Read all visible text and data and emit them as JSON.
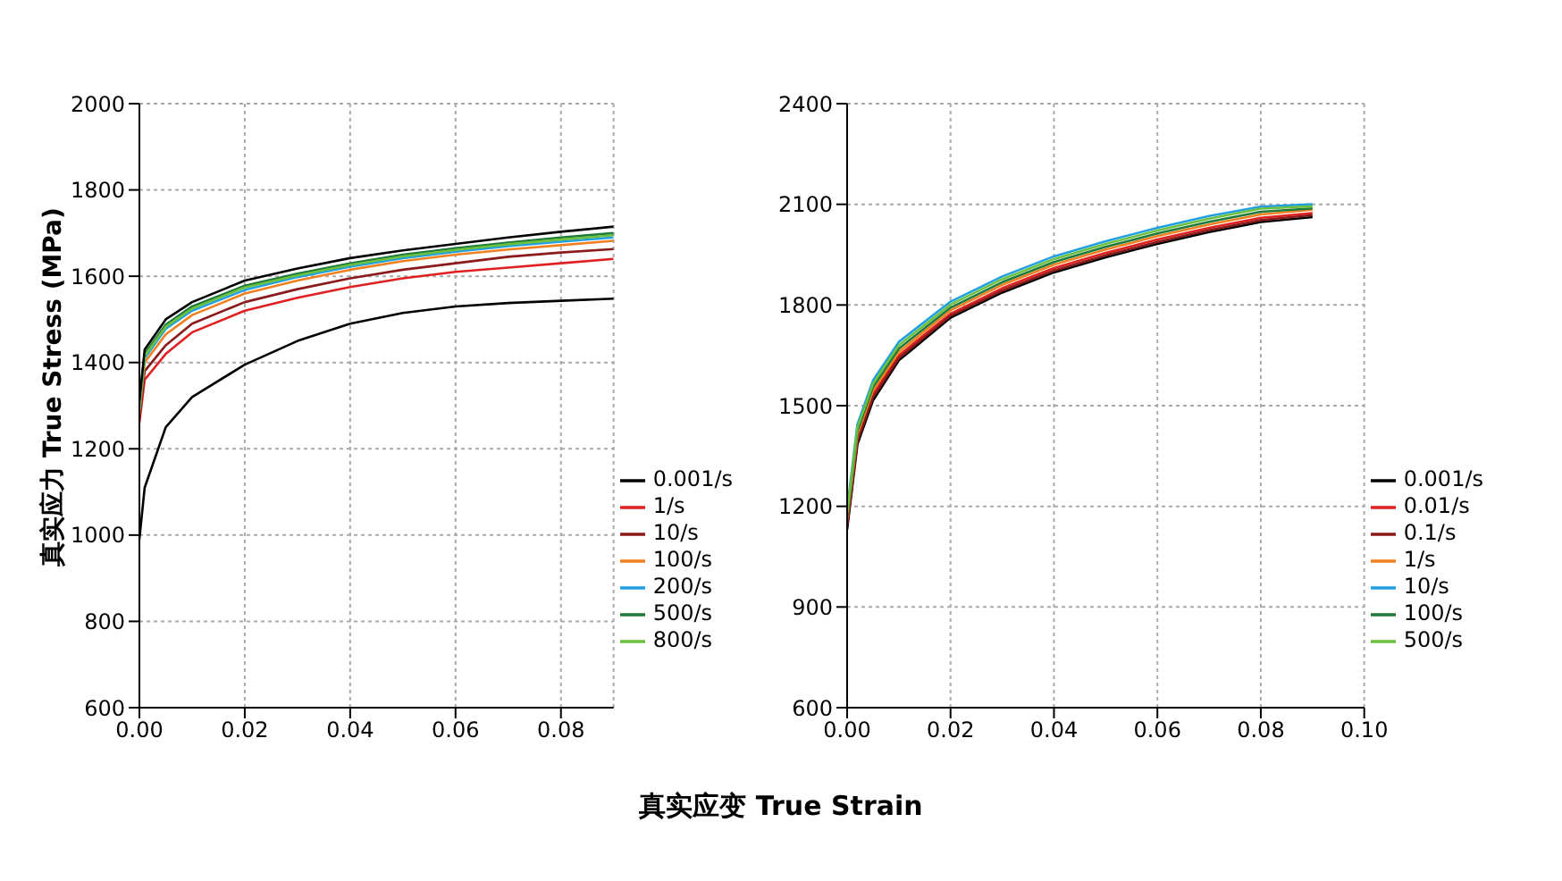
{
  "chart_data": [
    {
      "type": "line",
      "ylabel": "真实应力 True Stress (MPa)",
      "xlabel": "真实应变 True Strain",
      "x": [
        0,
        0.001,
        0.005,
        0.01,
        0.02,
        0.03,
        0.04,
        0.05,
        0.06,
        0.07,
        0.08,
        0.09
      ],
      "xlim": [
        0,
        0.09
      ],
      "xticks": [
        {
          "value": 0,
          "label": "0.00"
        },
        {
          "value": 0.02,
          "label": "0.02"
        },
        {
          "value": 0.04,
          "label": "0.04"
        },
        {
          "value": 0.06,
          "label": "0.06"
        },
        {
          "value": 0.08,
          "label": "0.08"
        }
      ],
      "ylim": [
        600,
        2000
      ],
      "yticks": [
        600,
        800,
        1000,
        1200,
        1400,
        1600,
        1800,
        2000
      ],
      "grid": true,
      "legend": "bottom right",
      "line_style": "solid",
      "marker": "none",
      "series": [
        {
          "name": "0.001/s",
          "color": "#000000",
          "values": [
            990,
            1110,
            1250,
            1320,
            1395,
            1450,
            1490,
            1515,
            1530,
            1538,
            1543,
            1548
          ]
        },
        {
          "name": "1/s",
          "color": "#e02020",
          "values": [
            1260,
            1360,
            1420,
            1470,
            1520,
            1550,
            1575,
            1595,
            1610,
            1620,
            1630,
            1640
          ]
        },
        {
          "name": "10/s",
          "color": "#8b1a1a",
          "values": [
            1270,
            1380,
            1440,
            1490,
            1540,
            1570,
            1595,
            1615,
            1630,
            1645,
            1655,
            1663
          ]
        },
        {
          "name": "100/s",
          "color": "#f08020",
          "values": [
            1280,
            1400,
            1465,
            1510,
            1560,
            1590,
            1615,
            1635,
            1650,
            1662,
            1672,
            1682
          ]
        },
        {
          "name": "200/s",
          "color": "#20a0e0",
          "values": [
            1290,
            1410,
            1478,
            1520,
            1568,
            1598,
            1622,
            1642,
            1657,
            1670,
            1680,
            1690
          ]
        },
        {
          "name": "500/s",
          "color": "#1e7a3a",
          "values": [
            1300,
            1420,
            1488,
            1530,
            1578,
            1606,
            1630,
            1650,
            1665,
            1678,
            1690,
            1700
          ]
        },
        {
          "name": "800/s",
          "color": "#6cc040",
          "values": [
            1295,
            1415,
            1483,
            1525,
            1574,
            1602,
            1626,
            1646,
            1661,
            1674,
            1685,
            1695
          ]
        },
        {
          "color": "#000000",
          "values": [
            1310,
            1430,
            1500,
            1540,
            1590,
            1618,
            1642,
            1660,
            1675,
            1690,
            1703,
            1715
          ]
        }
      ]
    },
    {
      "type": "line",
      "x": [
        0,
        0.002,
        0.005,
        0.01,
        0.02,
        0.03,
        0.04,
        0.05,
        0.06,
        0.07,
        0.08,
        0.09
      ],
      "xlim": [
        0,
        0.1
      ],
      "xticks": [
        {
          "value": 0,
          "label": "0.00"
        },
        {
          "value": 0.02,
          "label": "0.02"
        },
        {
          "value": 0.04,
          "label": "0.04"
        },
        {
          "value": 0.06,
          "label": "0.06"
        },
        {
          "value": 0.08,
          "label": "0.08"
        },
        {
          "value": 0.1,
          "label": "0.10"
        }
      ],
      "ylim": [
        600,
        2400
      ],
      "yticks": [
        600,
        900,
        1200,
        1500,
        1800,
        2100,
        2400
      ],
      "grid": true,
      "legend": "bottom right",
      "line_style": "solid",
      "marker": "none",
      "series": [
        {
          "name": "0.001/s",
          "color": "#000000",
          "values": [
            1130,
            1385,
            1515,
            1635,
            1762,
            1837,
            1897,
            1942,
            1982,
            2017,
            2047,
            2062
          ]
        },
        {
          "name": "0.01/s",
          "color": "#e02020",
          "values": [
            1150,
            1405,
            1535,
            1650,
            1774,
            1850,
            1910,
            1955,
            1995,
            2030,
            2060,
            2074
          ]
        },
        {
          "name": "0.1/s",
          "color": "#8b1a1a",
          "values": [
            1140,
            1395,
            1525,
            1642,
            1768,
            1843,
            1903,
            1948,
            1988,
            2023,
            2053,
            2068
          ]
        },
        {
          "name": "1/s",
          "color": "#f08020",
          "values": [
            1160,
            1415,
            1545,
            1660,
            1784,
            1860,
            1920,
            1965,
            2005,
            2040,
            2070,
            2084
          ]
        },
        {
          "name": "10/s",
          "color": "#20a0e0",
          "values": [
            1190,
            1445,
            1575,
            1690,
            1810,
            1885,
            1945,
            1990,
            2030,
            2065,
            2093,
            2100
          ]
        },
        {
          "name": "100/s",
          "color": "#1e7a3a",
          "values": [
            1170,
            1425,
            1555,
            1670,
            1792,
            1868,
            1928,
            1973,
            2013,
            2048,
            2078,
            2088
          ]
        },
        {
          "name": "500/s",
          "color": "#6cc040",
          "values": [
            1180,
            1435,
            1565,
            1680,
            1801,
            1877,
            1937,
            1982,
            2022,
            2057,
            2087,
            2094
          ]
        }
      ]
    }
  ]
}
